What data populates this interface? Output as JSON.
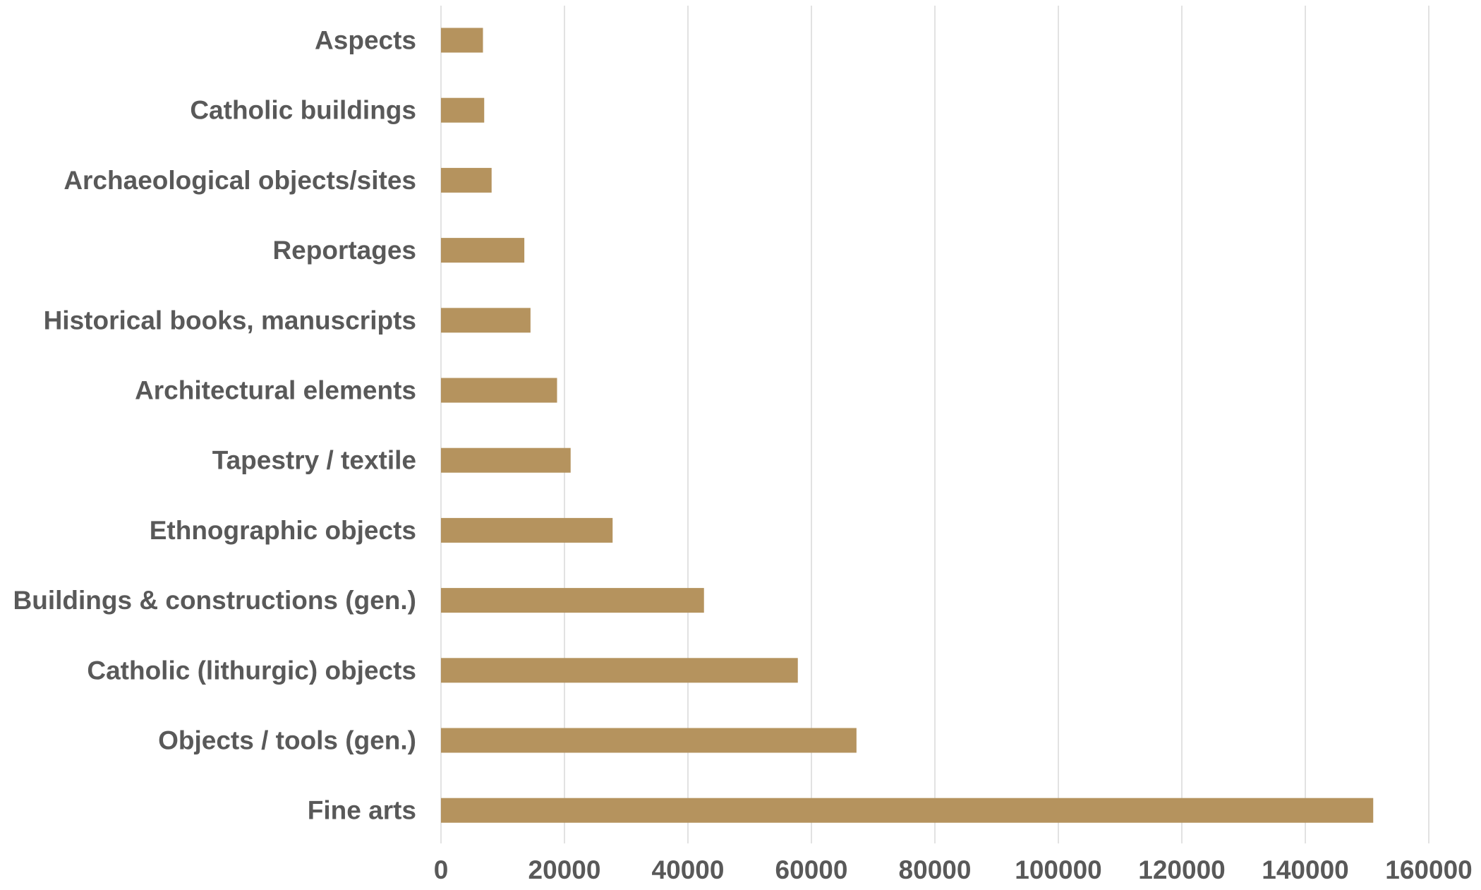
{
  "chart_data": {
    "type": "bar",
    "orientation": "horizontal",
    "title": "",
    "xlabel": "",
    "ylabel": "",
    "categories": [
      "Aspects",
      "Catholic buildings",
      "Archaeological objects/sites",
      "Reportages",
      "Historical books, manuscripts",
      "Architectural elements",
      "Tapestry / textile",
      "Ethnographic objects",
      "Buildings & constructions (gen.)",
      "Catholic (lithurgic) objects",
      "Objects / tools (gen.)",
      "Fine arts"
    ],
    "values": [
      6800,
      7000,
      8200,
      13500,
      14500,
      18800,
      21000,
      27800,
      42600,
      57800,
      67300,
      151000
    ],
    "xlim": [
      0,
      160000
    ],
    "xticks": [
      0,
      20000,
      40000,
      60000,
      80000,
      100000,
      120000,
      140000,
      160000
    ],
    "xtick_labels": [
      "0",
      "20000",
      "40000",
      "60000",
      "80000",
      "100000",
      "120000",
      "140000",
      "160000"
    ],
    "grid": "vertical",
    "legend": "none",
    "colors": {
      "bar": "#b5935e",
      "grid": "#d9d9d9",
      "text": "#595959"
    }
  }
}
